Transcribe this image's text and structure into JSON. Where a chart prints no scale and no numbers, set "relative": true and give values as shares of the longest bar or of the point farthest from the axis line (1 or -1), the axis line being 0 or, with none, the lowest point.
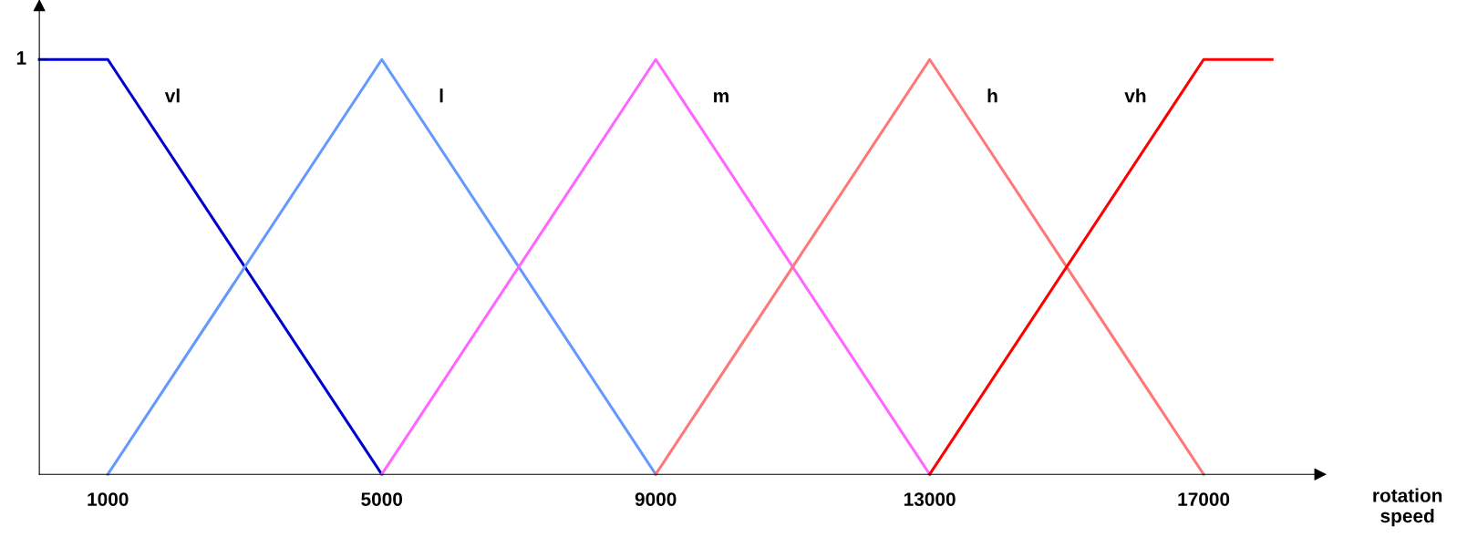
{
  "chart_data": {
    "type": "line",
    "xlabel": "rotation speed",
    "xlim": [
      0,
      18700
    ],
    "xticks": [
      1000,
      5000,
      9000,
      13000,
      17000
    ],
    "relative": true,
    "annotations": [
      "1"
    ],
    "grid": false,
    "legend": false,
    "marker": "none",
    "line_style": "solid",
    "series": [
      {
        "name": "vl",
        "color": "#0000cc",
        "x": [
          0,
          1000,
          5000
        ],
        "values": [
          1,
          1,
          0
        ]
      },
      {
        "name": "l",
        "color": "#6699ff",
        "x": [
          1000,
          5000,
          9000
        ],
        "values": [
          0,
          1,
          0
        ]
      },
      {
        "name": "m",
        "color": "#ff66ff",
        "x": [
          5000,
          9000,
          13000
        ],
        "values": [
          0,
          1,
          0
        ]
      },
      {
        "name": "h",
        "color": "#ff7777",
        "x": [
          9000,
          13000,
          17000
        ],
        "values": [
          0,
          1,
          0
        ]
      },
      {
        "name": "vh",
        "color": "#ff0000",
        "x": [
          13000,
          17000,
          18000
        ],
        "values": [
          0,
          1,
          1
        ]
      }
    ]
  }
}
